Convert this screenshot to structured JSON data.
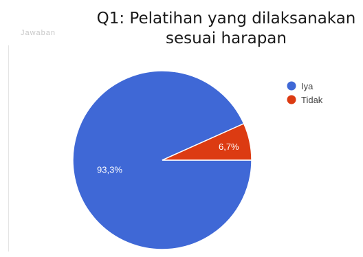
{
  "title": [
    "Q1: Pelatihan yang dilaksanakan",
    "sesuai harapan"
  ],
  "faded_header_text": "Jawaban",
  "chart_data": {
    "type": "pie",
    "title": "Q1: Pelatihan yang dilaksanakan sesuai harapan",
    "categories": [
      "Iya",
      "Tidak"
    ],
    "values": [
      93.3,
      6.7
    ],
    "labels": [
      "93,3%",
      "6,7%"
    ],
    "colors": [
      "#3f68d6",
      "#dc3b12"
    ],
    "legend_position": "right"
  }
}
